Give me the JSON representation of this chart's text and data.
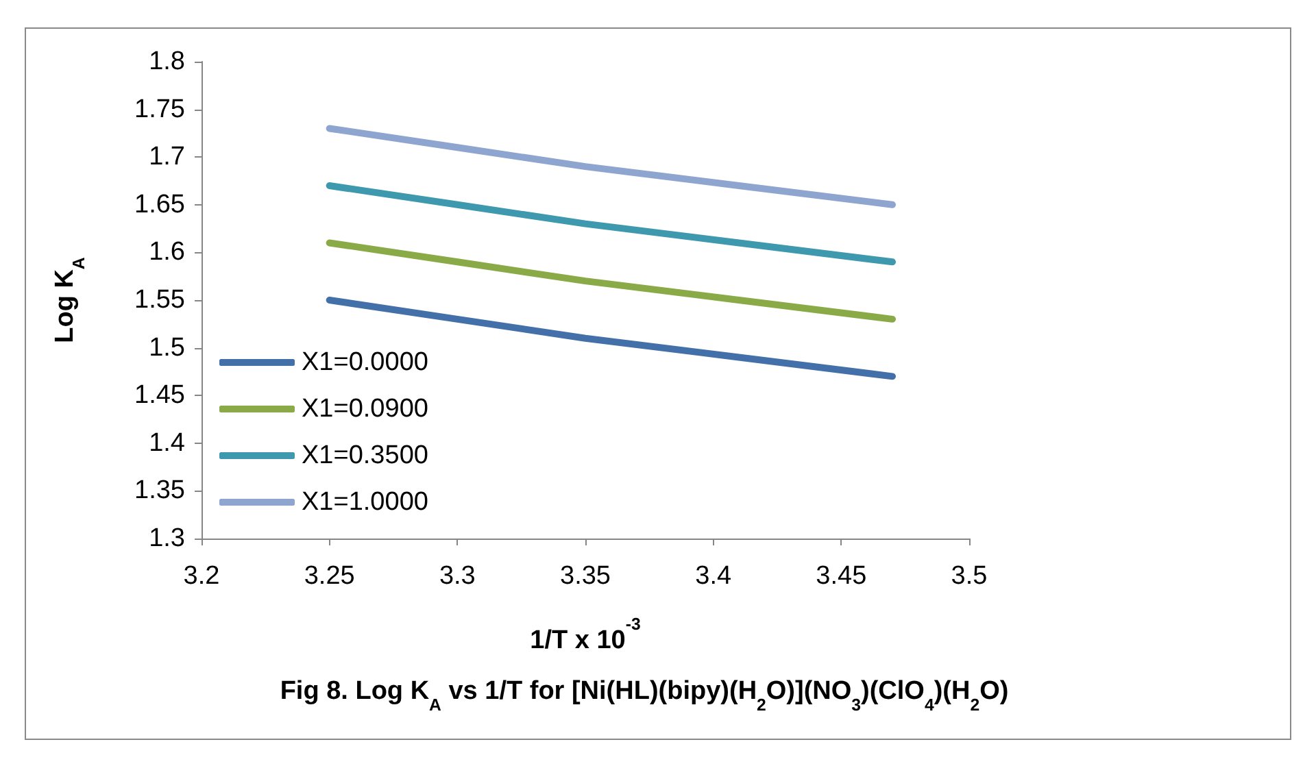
{
  "chart_data": {
    "type": "line",
    "title": "Fig 8. Log K$_{A}$ vs 1/T for [Ni(HL)(bipy)(H$_{2}$O)](NO$_{3}$)(ClO$_{4}$)(H$_{2}$O)",
    "xlabel": "1/T x 10$^{-3}$",
    "ylabel": "Log K$_{A}$",
    "x": [
      3.25,
      3.3,
      3.35,
      3.41,
      3.47
    ],
    "series": [
      {
        "name": "X1=0.0000",
        "color": "#4470aa",
        "values": [
          1.55,
          1.53,
          1.51,
          1.49,
          1.47
        ]
      },
      {
        "name": "X1=0.0900",
        "color": "#8aaa48",
        "values": [
          1.61,
          1.59,
          1.57,
          1.55,
          1.53
        ]
      },
      {
        "name": "X1=0.3500",
        "color": "#3e98ae",
        "values": [
          1.67,
          1.65,
          1.63,
          1.61,
          1.59
        ]
      },
      {
        "name": "X1=1.0000",
        "color": "#8ea5cf",
        "values": [
          1.73,
          1.71,
          1.69,
          1.67,
          1.65
        ]
      }
    ],
    "xlim": [
      3.2,
      3.5
    ],
    "xticks": [
      3.2,
      3.25,
      3.3,
      3.35,
      3.4,
      3.45,
      3.5
    ],
    "ylim": [
      1.3,
      1.8
    ],
    "yticks": [
      1.3,
      1.35,
      1.4,
      1.45,
      1.5,
      1.55,
      1.6,
      1.65,
      1.7,
      1.75,
      1.8
    ],
    "grid": false,
    "legend": "bottom left"
  }
}
